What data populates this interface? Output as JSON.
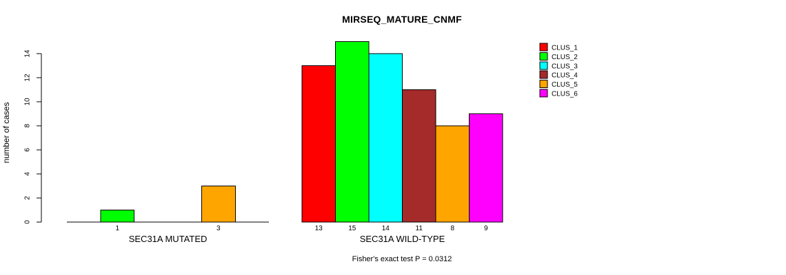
{
  "chart_data": {
    "type": "bar",
    "title": "MIRSEQ_MATURE_CNMF",
    "ylabel": "number of cases",
    "footnote": "Fisher's exact test P = 0.0312",
    "ylim": [
      0,
      15
    ],
    "yticks": [
      0,
      2,
      4,
      6,
      8,
      10,
      12,
      14
    ],
    "grid": false,
    "legend_position": "top-right",
    "clusters": [
      {
        "name": "CLUS_1",
        "color": "#FF0000"
      },
      {
        "name": "CLUS_2",
        "color": "#00FF00"
      },
      {
        "name": "CLUS_3",
        "color": "#00FFFF"
      },
      {
        "name": "CLUS_4",
        "color": "#A52A2A"
      },
      {
        "name": "CLUS_5",
        "color": "#FFA500"
      },
      {
        "name": "CLUS_6",
        "color": "#FF00FF"
      }
    ],
    "groups": [
      {
        "label": "SEC31A MUTATED",
        "values": [
          0,
          1,
          0,
          0,
          3,
          0
        ],
        "bar_labels": [
          "",
          "1",
          "",
          "",
          "3",
          ""
        ]
      },
      {
        "label": "SEC31A WILD-TYPE",
        "values": [
          13,
          15,
          14,
          11,
          8,
          9
        ],
        "bar_labels": [
          "13",
          "15",
          "14",
          "11",
          "8",
          "9"
        ]
      }
    ]
  }
}
